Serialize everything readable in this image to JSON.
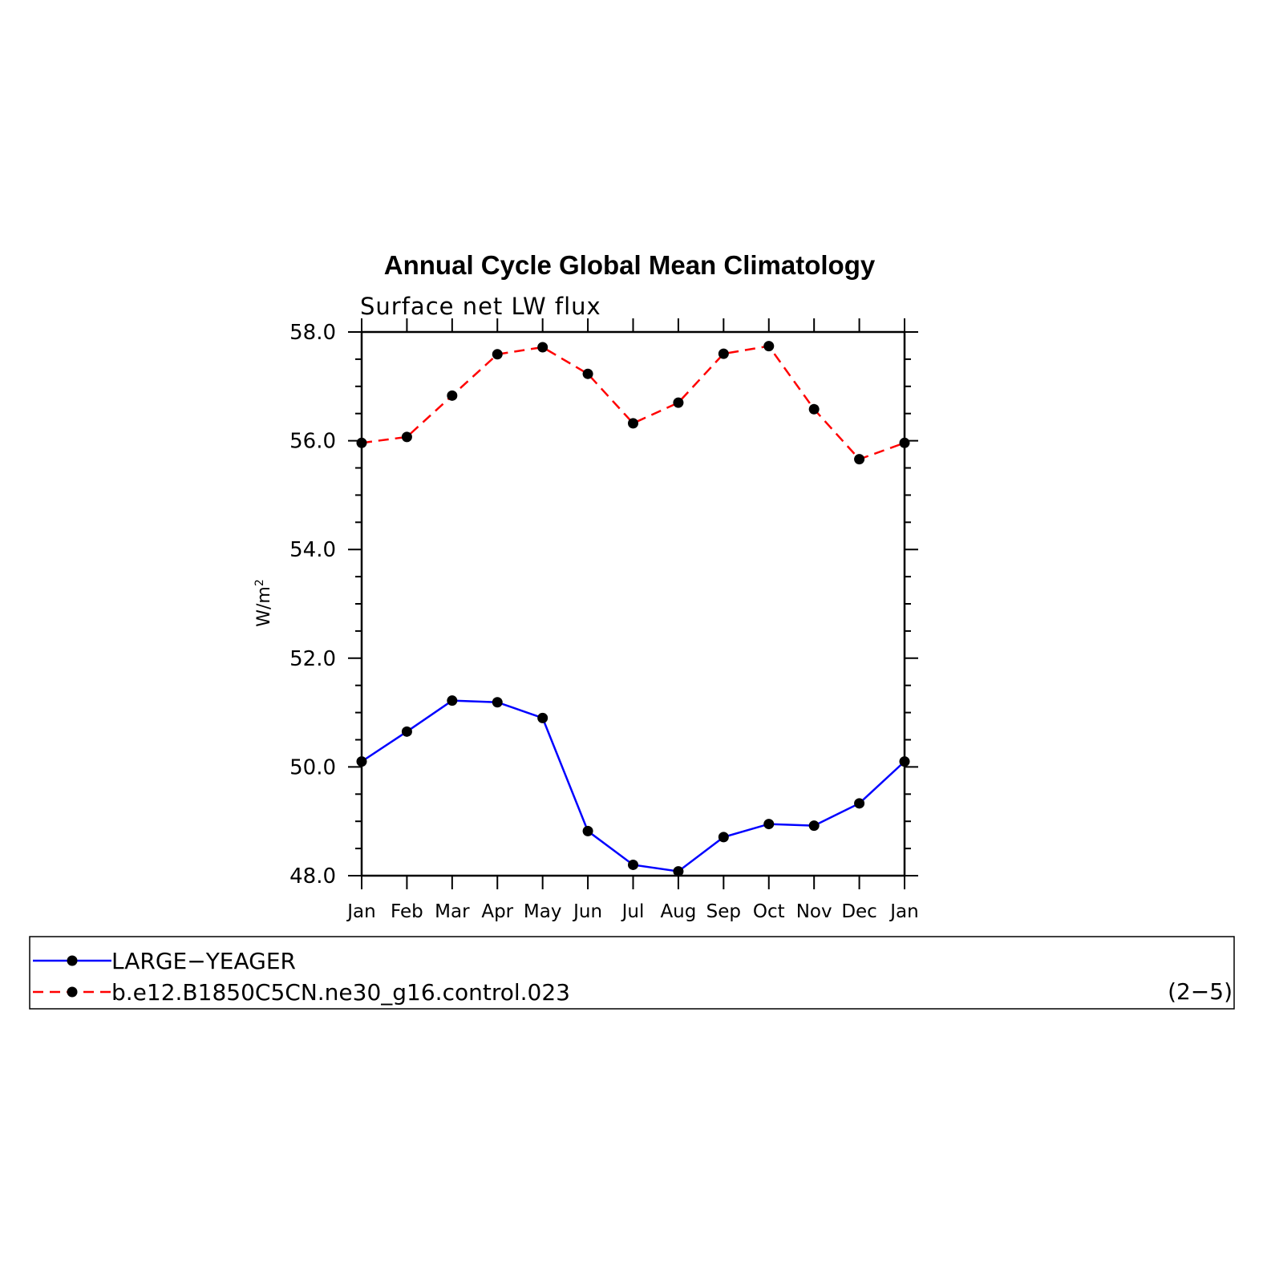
{
  "chart_data": {
    "type": "line",
    "title": "Annual Cycle Global Mean Climatology",
    "subtitle": "Surface net LW flux",
    "ylabel": "W/m",
    "ylabel_superscript": "2",
    "ylim": [
      48.0,
      58.0
    ],
    "yticks": [
      "58.0",
      "56.0",
      "54.0",
      "52.0",
      "50.0",
      "48.0"
    ],
    "categories": [
      "Jan",
      "Feb",
      "Mar",
      "Apr",
      "May",
      "Jun",
      "Jul",
      "Aug",
      "Sep",
      "Oct",
      "Nov",
      "Dec",
      "Jan"
    ],
    "series": [
      {
        "name": "LARGE−YEAGER",
        "color": "#0000ff",
        "dash": "solid",
        "values": [
          50.1,
          50.65,
          51.22,
          51.19,
          50.9,
          48.82,
          48.2,
          48.08,
          48.71,
          48.95,
          48.92,
          49.33,
          50.1
        ]
      },
      {
        "name": "b.e12.B1850C5CN.ne30_g16.control.023",
        "color": "#ff0000",
        "dash": "dashed",
        "values": [
          55.96,
          56.07,
          56.83,
          57.59,
          57.72,
          57.23,
          56.32,
          56.7,
          57.6,
          57.74,
          56.58,
          55.66,
          55.96
        ]
      }
    ],
    "grid": false,
    "legend_position": "bottom",
    "legend_note": "(2−5)"
  }
}
